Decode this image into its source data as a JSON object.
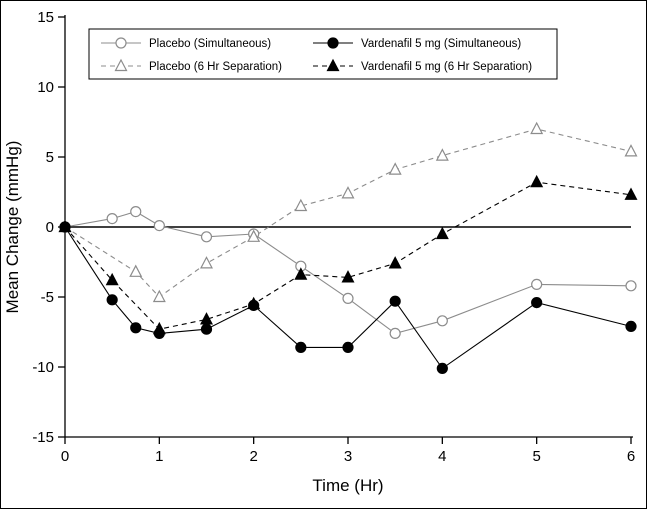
{
  "chart_data": {
    "type": "line",
    "title": "",
    "xlabel": "Time (Hr)",
    "ylabel": "Mean Change (mmHg)",
    "xlim": [
      0,
      6
    ],
    "ylim": [
      -15,
      15
    ],
    "xticks": [
      0,
      1,
      2,
      3,
      4,
      5,
      6
    ],
    "yticks": [
      -15,
      -10,
      -5,
      0,
      5,
      10,
      15
    ],
    "grid": false,
    "legend_position": "top-inside",
    "reference_line_y": 0,
    "colors": {
      "placebo": "#8c8c8c",
      "vardenafil": "#000000",
      "axis": "#000000",
      "background": "#ffffff"
    },
    "series": [
      {
        "name": "Placebo (Simultaneous)",
        "marker": "open-circle",
        "line": "solid",
        "color": "#8c8c8c",
        "x": [
          0,
          0.5,
          0.75,
          1,
          1.5,
          2,
          2.5,
          3,
          3.5,
          4,
          5,
          6
        ],
        "values": [
          0,
          0.6,
          1.1,
          0.1,
          -0.7,
          -0.5,
          -2.8,
          -5.1,
          -7.6,
          -6.7,
          -4.1,
          -4.2
        ]
      },
      {
        "name": "Placebo (6 Hr Separation)",
        "marker": "open-triangle",
        "line": "dashed",
        "color": "#8c8c8c",
        "x": [
          0,
          0.75,
          1,
          1.5,
          2,
          2.5,
          3,
          3.5,
          4,
          5,
          6
        ],
        "values": [
          0,
          -3.2,
          -5.0,
          -2.6,
          -0.7,
          1.5,
          2.4,
          4.1,
          5.1,
          7.0,
          5.4
        ]
      },
      {
        "name": "Vardenafil 5 mg (Simultaneous)",
        "marker": "filled-circle",
        "line": "solid",
        "color": "#000000",
        "x": [
          0,
          0.5,
          0.75,
          1,
          1.5,
          2,
          2.5,
          3,
          3.5,
          4,
          5,
          6
        ],
        "values": [
          0,
          -5.2,
          -7.2,
          -7.6,
          -7.3,
          -5.6,
          -8.6,
          -8.6,
          -5.3,
          -10.1,
          -5.4,
          -7.1
        ]
      },
      {
        "name": "Vardenafil 5 mg (6 Hr Separation)",
        "marker": "filled-triangle",
        "line": "dashed",
        "color": "#000000",
        "x": [
          0,
          0.5,
          1,
          1.5,
          2,
          2.5,
          3,
          3.5,
          4,
          5,
          6
        ],
        "values": [
          0,
          -3.8,
          -7.3,
          -6.6,
          -5.5,
          -3.4,
          -3.6,
          -2.6,
          -0.5,
          3.2,
          2.3
        ]
      }
    ]
  }
}
